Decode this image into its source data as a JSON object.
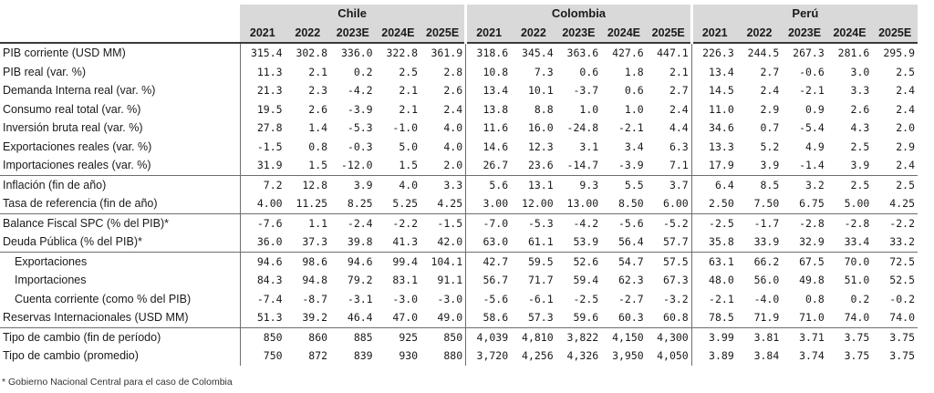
{
  "countries": [
    "Chile",
    "Colombia",
    "Perú"
  ],
  "years": [
    "2021",
    "2022",
    "2023E",
    "2024E",
    "2025E"
  ],
  "rows": [
    {
      "label": "PIB corriente (USD MM)",
      "values": [
        "315.4",
        "302.8",
        "336.0",
        "322.8",
        "361.9",
        "318.6",
        "345.4",
        "363.6",
        "427.6",
        "447.1",
        "226.3",
        "244.5",
        "267.3",
        "281.6",
        "295.9"
      ]
    },
    {
      "label": "PIB real (var. %)",
      "values": [
        "11.3",
        "2.1",
        "0.2",
        "2.5",
        "2.8",
        "10.8",
        "7.3",
        "0.6",
        "1.8",
        "2.1",
        "13.4",
        "2.7",
        "-0.6",
        "3.0",
        "2.5"
      ]
    },
    {
      "label": "Demanda Interna real (var. %)",
      "values": [
        "21.3",
        "2.3",
        "-4.2",
        "2.1",
        "2.6",
        "13.4",
        "10.1",
        "-3.7",
        "0.6",
        "2.7",
        "14.5",
        "2.4",
        "-2.1",
        "3.3",
        "2.4"
      ]
    },
    {
      "label": "Consumo real total (var. %)",
      "values": [
        "19.5",
        "2.6",
        "-3.9",
        "2.1",
        "2.4",
        "13.8",
        "8.8",
        "1.0",
        "1.0",
        "2.4",
        "11.0",
        "2.9",
        "0.9",
        "2.6",
        "2.4"
      ]
    },
    {
      "label": "Inversión bruta real (var. %)",
      "values": [
        "27.8",
        "1.4",
        "-5.3",
        "-1.0",
        "4.0",
        "11.6",
        "16.0",
        "-24.8",
        "-2.1",
        "4.4",
        "34.6",
        "0.7",
        "-5.4",
        "4.3",
        "2.0"
      ]
    },
    {
      "label": "Exportaciones reales (var. %)",
      "values": [
        "-1.5",
        "0.8",
        "-0.3",
        "5.0",
        "4.0",
        "14.6",
        "12.3",
        "3.1",
        "3.4",
        "6.3",
        "13.3",
        "5.2",
        "4.9",
        "2.5",
        "2.9"
      ]
    },
    {
      "label": "Importaciones reales (var. %)",
      "values": [
        "31.9",
        "1.5",
        "-12.0",
        "1.5",
        "2.0",
        "26.7",
        "23.6",
        "-14.7",
        "-3.9",
        "7.1",
        "17.9",
        "3.9",
        "-1.4",
        "3.9",
        "2.4"
      ]
    },
    {
      "label": "Inflación (fin de año)",
      "top": true,
      "values": [
        "7.2",
        "12.8",
        "3.9",
        "4.0",
        "3.3",
        "5.6",
        "13.1",
        "9.3",
        "5.5",
        "3.7",
        "6.4",
        "8.5",
        "3.2",
        "2.5",
        "2.5"
      ]
    },
    {
      "label": "Tasa de referencia (fin de año)",
      "values": [
        "4.00",
        "11.25",
        "8.25",
        "5.25",
        "4.25",
        "3.00",
        "12.00",
        "13.00",
        "8.50",
        "6.00",
        "2.50",
        "7.50",
        "6.75",
        "5.00",
        "4.25"
      ]
    },
    {
      "label": "Balance Fiscal SPC (% del PIB)*",
      "top": true,
      "values": [
        "-7.6",
        "1.1",
        "-2.4",
        "-2.2",
        "-1.5",
        "-7.0",
        "-5.3",
        "-4.2",
        "-5.6",
        "-5.2",
        "-2.5",
        "-1.7",
        "-2.8",
        "-2.8",
        "-2.2"
      ]
    },
    {
      "label": "Deuda Pública (% del PIB)*",
      "values": [
        "36.0",
        "37.3",
        "39.8",
        "41.3",
        "42.0",
        "63.0",
        "61.1",
        "53.9",
        "56.4",
        "57.7",
        "35.8",
        "33.9",
        "32.9",
        "33.4",
        "33.2"
      ]
    },
    {
      "label": "Exportaciones",
      "top": true,
      "indent": true,
      "values": [
        "94.6",
        "98.6",
        "94.6",
        "99.4",
        "104.1",
        "42.7",
        "59.5",
        "52.6",
        "54.7",
        "57.5",
        "63.1",
        "66.2",
        "67.5",
        "70.0",
        "72.5"
      ]
    },
    {
      "label": "Importaciones",
      "indent": true,
      "values": [
        "84.3",
        "94.8",
        "79.2",
        "83.1",
        "91.1",
        "56.7",
        "71.7",
        "59.4",
        "62.3",
        "67.3",
        "48.0",
        "56.0",
        "49.8",
        "51.0",
        "52.5"
      ]
    },
    {
      "label": "Cuenta corriente (como % del PIB)",
      "indent": true,
      "values": [
        "-7.4",
        "-8.7",
        "-3.1",
        "-3.0",
        "-3.0",
        "-5.6",
        "-6.1",
        "-2.5",
        "-2.7",
        "-3.2",
        "-2.1",
        "-4.0",
        "0.8",
        "0.2",
        "-0.2"
      ]
    },
    {
      "label": "Reservas Internacionales (USD MM)",
      "values": [
        "51.3",
        "39.2",
        "46.4",
        "47.0",
        "49.0",
        "58.6",
        "57.3",
        "59.6",
        "60.3",
        "60.8",
        "78.5",
        "71.9",
        "71.0",
        "74.0",
        "74.0"
      ]
    },
    {
      "label": "Tipo de cambio (fin de período)",
      "top": true,
      "values": [
        "850",
        "860",
        "885",
        "925",
        "850",
        "4,039",
        "4,810",
        "3,822",
        "4,150",
        "4,300",
        "3.99",
        "3.81",
        "3.71",
        "3.75",
        "3.75"
      ]
    },
    {
      "label": "Tipo de cambio (promedio)",
      "values": [
        "750",
        "872",
        "839",
        "930",
        "880",
        "3,720",
        "4,256",
        "4,326",
        "3,950",
        "4,050",
        "3.89",
        "3.84",
        "3.74",
        "3.75",
        "3.75"
      ]
    }
  ],
  "footnote": "* Gobierno Nacional Central para el caso de Colombia"
}
